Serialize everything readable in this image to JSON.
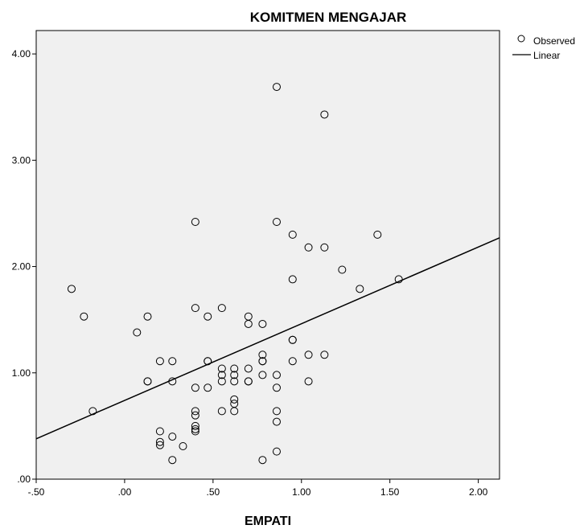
{
  "chart_data": {
    "type": "scatter",
    "title": "KOMITMEN MENGAJAR",
    "xlabel": "EMPATI",
    "ylabel": "",
    "xlim": [
      -0.5,
      2.12
    ],
    "ylim": [
      0,
      4.22
    ],
    "x_ticks": [
      -0.5,
      0,
      0.5,
      1,
      1.5,
      2
    ],
    "x_tick_labels": [
      "-.50",
      ".00",
      ".50",
      "1.00",
      "1.50",
      "2.00"
    ],
    "y_ticks": [
      0,
      1,
      2,
      3,
      4
    ],
    "y_tick_labels": [
      ".00",
      "1.00",
      "2.00",
      "3.00",
      "4.00"
    ],
    "grid": false,
    "legend_position": "top-right, outside plot",
    "colors": {
      "plot_background": "#f0f0f0",
      "frame": "#000000",
      "marker": "#000000",
      "line": "#000000"
    },
    "series": [
      {
        "name": "Observed",
        "kind": "points",
        "x": [
          -0.3,
          -0.23,
          -0.18,
          0.07,
          0.13,
          0.13,
          0.13,
          0.2,
          0.2,
          0.2,
          0.2,
          0.27,
          0.27,
          0.27,
          0.27,
          0.33,
          0.4,
          0.4,
          0.4,
          0.4,
          0.4,
          0.4,
          0.4,
          0.4,
          0.47,
          0.47,
          0.47,
          0.47,
          0.55,
          0.55,
          0.55,
          0.55,
          0.55,
          0.62,
          0.62,
          0.62,
          0.62,
          0.62,
          0.62,
          0.7,
          0.7,
          0.7,
          0.7,
          0.7,
          0.78,
          0.78,
          0.78,
          0.78,
          0.78,
          0.78,
          0.86,
          0.86,
          0.86,
          0.86,
          0.86,
          0.86,
          0.86,
          0.95,
          0.95,
          0.95,
          0.95,
          0.95,
          1.04,
          1.04,
          1.04,
          1.13,
          1.13,
          1.13,
          1.23,
          1.33,
          1.43,
          1.55
        ],
        "y": [
          1.79,
          1.53,
          0.64,
          1.38,
          1.53,
          0.92,
          0.92,
          1.11,
          0.45,
          0.35,
          0.32,
          1.11,
          0.92,
          0.4,
          0.18,
          0.31,
          2.42,
          1.61,
          0.86,
          0.64,
          0.6,
          0.5,
          0.47,
          0.45,
          1.53,
          1.11,
          1.11,
          0.86,
          1.61,
          1.04,
          0.98,
          0.92,
          0.64,
          1.04,
          0.98,
          0.92,
          0.75,
          0.71,
          0.64,
          1.53,
          1.46,
          1.04,
          0.92,
          0.92,
          1.46,
          1.17,
          1.11,
          1.11,
          0.98,
          0.18,
          3.69,
          2.42,
          0.98,
          0.86,
          0.64,
          0.54,
          0.26,
          2.3,
          1.88,
          1.31,
          1.31,
          1.11,
          2.18,
          1.17,
          0.92,
          3.43,
          2.18,
          1.17,
          1.97,
          1.79,
          2.3,
          1.88
        ]
      },
      {
        "name": "Linear",
        "kind": "line",
        "x": [
          -0.5,
          2.12
        ],
        "y": [
          0.38,
          2.27
        ]
      }
    ]
  }
}
